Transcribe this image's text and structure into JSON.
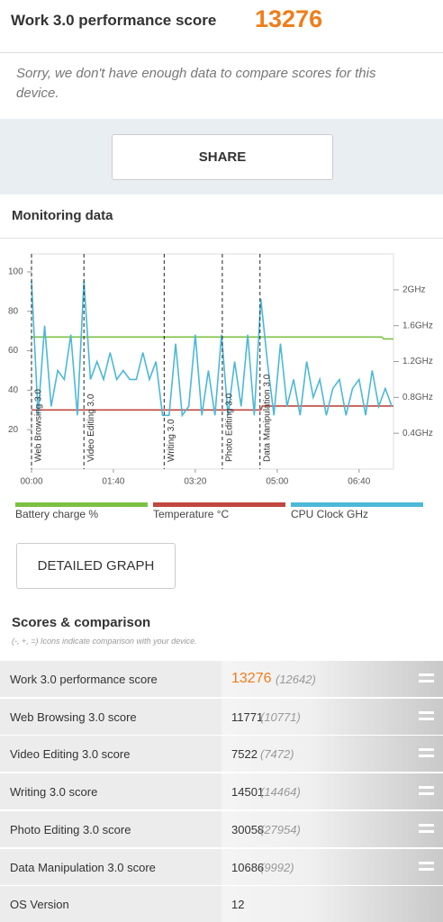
{
  "header": {
    "title": "Work 3.0 performance score",
    "score": "13276",
    "message": "Sorry, we don't have enough data to compare scores for this device."
  },
  "share_button": "SHARE",
  "monitoring_title": "Monitoring data",
  "chart_data": {
    "type": "line",
    "xlim": [
      0,
      442
    ],
    "xticks": [
      {
        "value": 0,
        "label": "00:00"
      },
      {
        "value": 100,
        "label": "01:40"
      },
      {
        "value": 200,
        "label": "03:20"
      },
      {
        "value": 300,
        "label": "05:00"
      },
      {
        "value": 400,
        "label": "06:40"
      }
    ],
    "ylim": [
      0,
      100
    ],
    "yticks": [
      20,
      40,
      60,
      80,
      100
    ],
    "y2lim": [
      0,
      2.2
    ],
    "y2ticks": [
      {
        "value": 0.4,
        "label": "0.4GHz"
      },
      {
        "value": 0.8,
        "label": "0.8GHz"
      },
      {
        "value": 1.2,
        "label": "1.2GHz"
      },
      {
        "value": 1.6,
        "label": "1.6GHz"
      },
      {
        "value": 2,
        "label": "2GHz"
      }
    ],
    "markers": [
      {
        "x": 0,
        "label": "Web Browsing 3.0"
      },
      {
        "x": 64,
        "label": "Video Editing 3.0"
      },
      {
        "x": 162,
        "label": "Writing 3.0"
      },
      {
        "x": 233,
        "label": "Photo Editing 3.0"
      },
      {
        "x": 279,
        "label": "Data Manipulation 3.0"
      }
    ],
    "series": [
      {
        "name": "Battery charge %",
        "color": "#7cc142",
        "x": [
          0,
          428,
          430,
          442
        ],
        "values": [
          67,
          67,
          66,
          66
        ]
      },
      {
        "name": "Temperature °C",
        "color": "#c0473f",
        "x": [
          0,
          280,
          282,
          442
        ],
        "values": [
          30,
          30,
          32,
          32
        ]
      },
      {
        "name": "CPU Clock GHz",
        "color": "#4db8d8",
        "axis": "y2",
        "x": [
          0,
          8,
          16,
          24,
          32,
          40,
          48,
          56,
          64,
          72,
          80,
          88,
          96,
          104,
          112,
          120,
          128,
          136,
          144,
          152,
          160,
          168,
          176,
          184,
          192,
          200,
          208,
          216,
          224,
          232,
          240,
          248,
          256,
          264,
          272,
          280,
          288,
          296,
          304,
          312,
          320,
          328,
          336,
          344,
          352,
          360,
          368,
          376,
          384,
          392,
          400,
          408,
          416,
          424,
          432,
          440
        ],
        "values": [
          2.1,
          0.6,
          1.6,
          0.7,
          1.1,
          1.0,
          1.5,
          0.6,
          2.1,
          1.0,
          1.2,
          1.0,
          1.3,
          1.0,
          1.1,
          1.0,
          1.0,
          1.3,
          1.0,
          1.2,
          0.6,
          0.6,
          1.4,
          0.6,
          0.7,
          1.5,
          0.6,
          1.1,
          0.6,
          1.5,
          0.6,
          1.2,
          0.7,
          1.5,
          0.6,
          1.9,
          1.2,
          0.6,
          1.4,
          0.7,
          1.0,
          0.6,
          1.2,
          0.8,
          1.0,
          0.6,
          0.9,
          1.0,
          0.6,
          0.9,
          1.0,
          0.6,
          1.1,
          0.7,
          0.9,
          0.7
        ]
      }
    ]
  },
  "detail_button": "DETAILED GRAPH",
  "scores": {
    "title": "Scores & comparison",
    "subtitle": "(-, +, =) Icons indicate comparison with your device.",
    "rows": [
      [
        "Work 3.0 performance score",
        "13276",
        "(12642)"
      ],
      [
        "Web Browsing 3.0 score",
        "11771",
        "(10771)"
      ],
      [
        "Video Editing 3.0 score",
        "7522",
        "(7472)"
      ],
      [
        "Writing 3.0 score",
        "14501",
        "(14464)"
      ],
      [
        "Photo Editing 3.0 score",
        "30058",
        "(27954)"
      ],
      [
        "Data Manipulation 3.0 score",
        "10686",
        "(9992)"
      ],
      [
        "OS Version",
        "12"
      ]
    ]
  }
}
